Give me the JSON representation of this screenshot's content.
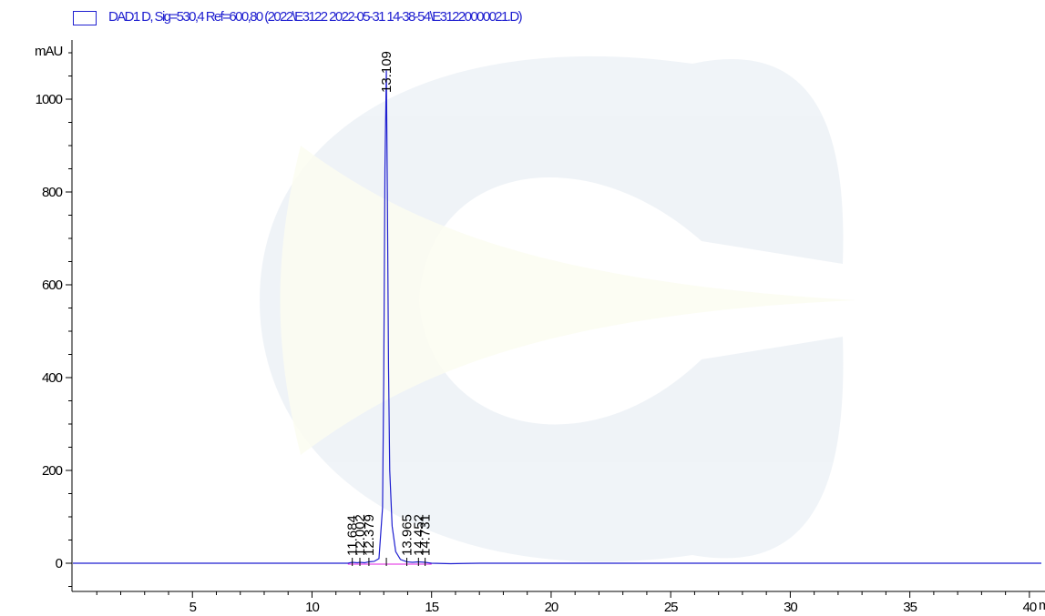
{
  "chart_data": {
    "type": "line",
    "title": "DAD1 D, Sig=530,4 Ref=600,80 (2022\\E3122 2022-05-31 14-38-54\\E31220000021.D)",
    "ylabel": "mAU",
    "xlabel": "",
    "x_unit_partial": "m",
    "xlim": [
      0,
      40.5
    ],
    "ylim": [
      -70,
      1125
    ],
    "x_ticks": [
      5,
      10,
      15,
      20,
      25,
      30,
      35,
      40
    ],
    "x_tick_labels": [
      "5",
      "10",
      "15",
      "20",
      "25",
      "30",
      "35",
      "40"
    ],
    "y_ticks": [
      0,
      200,
      400,
      600,
      800,
      1000
    ],
    "y_tick_labels": [
      "0",
      "200",
      "400",
      "600",
      "800",
      "1000"
    ],
    "grid": false,
    "legend_position": "top-left",
    "colors": {
      "trace": "#1f1fd0",
      "baseline": "#e020e0",
      "axis": "#000000",
      "text": "#000000"
    },
    "series": [
      {
        "name": "DAD1 D, Sig=530,4 Ref=600,80 (2022\\E3122 2022-05-31 14-38-54\\E31220000021.D)",
        "x": [
          0.0,
          11.5,
          11.68,
          11.9,
          12.0,
          12.2,
          12.38,
          12.6,
          12.8,
          12.95,
          13.0,
          13.05,
          13.109,
          13.15,
          13.2,
          13.25,
          13.35,
          13.5,
          13.7,
          13.965,
          14.2,
          14.452,
          14.731,
          15.0,
          15.8,
          16.3,
          17.0,
          40.5
        ],
        "y": [
          0,
          0,
          2,
          1,
          2,
          1,
          3,
          4,
          10,
          120,
          400,
          850,
          1062,
          800,
          420,
          200,
          80,
          25,
          8,
          3,
          2,
          3,
          2,
          0,
          -1,
          -0.5,
          0,
          0
        ]
      }
    ],
    "peaks": [
      {
        "rt": 11.684,
        "label": "11.684"
      },
      {
        "rt": 12.002,
        "label": "12.002"
      },
      {
        "rt": 12.379,
        "label": "12.379"
      },
      {
        "rt": 13.109,
        "label": "13.109"
      },
      {
        "rt": 13.965,
        "label": "13.965"
      },
      {
        "rt": 14.452,
        "label": "14.452"
      },
      {
        "rt": 14.731,
        "label": "14.731"
      }
    ]
  }
}
